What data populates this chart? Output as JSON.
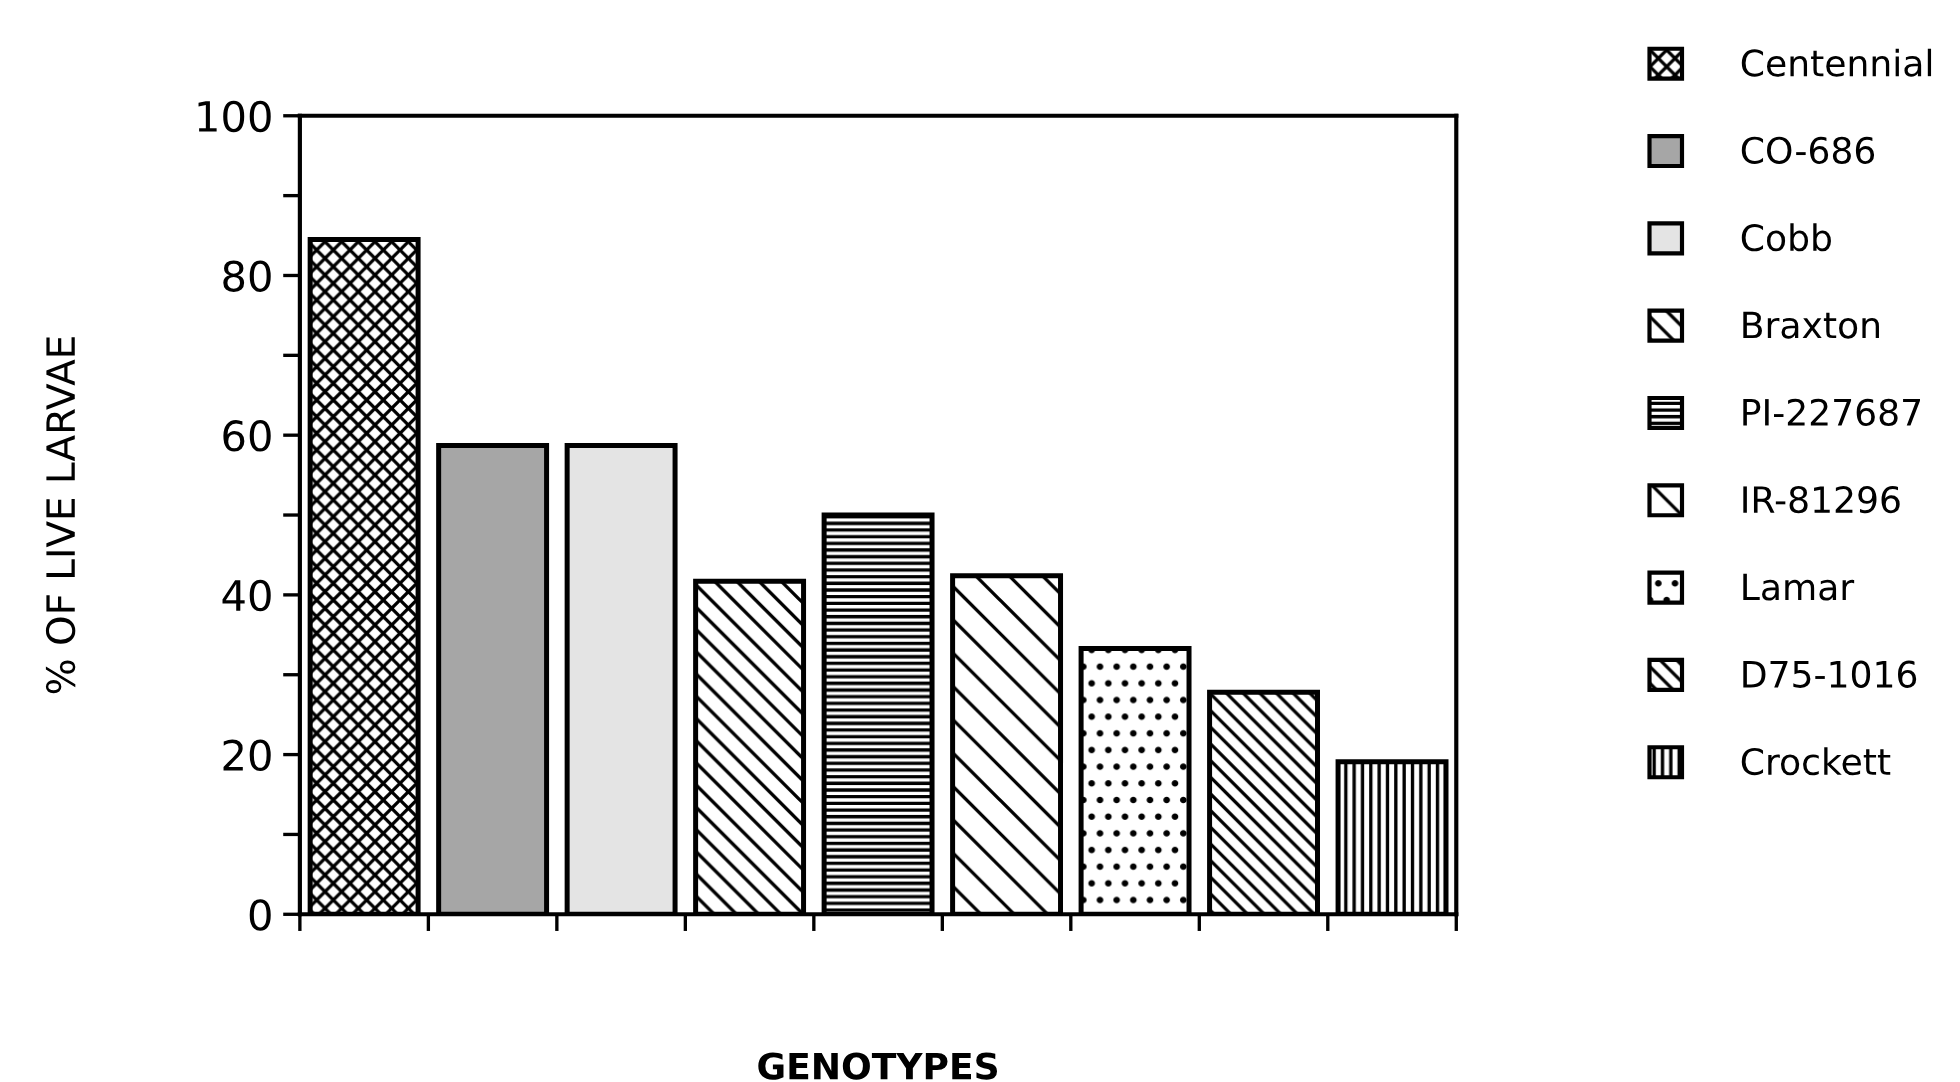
{
  "chart_data": {
    "type": "bar",
    "xlabel": "GENOTYPES",
    "ylabel": "% OF LIVE LARVAE",
    "categories": [
      null,
      null,
      null,
      null,
      null,
      null,
      null,
      null,
      null
    ],
    "series": [
      {
        "name": "Centennial",
        "color": "#000000",
        "values": [
          84.5,
          null,
          null,
          null,
          null,
          null,
          null,
          null,
          null
        ]
      },
      {
        "name": "CO-686",
        "color": "#a6a6a6",
        "values": [
          null,
          58.7,
          null,
          null,
          null,
          null,
          null,
          null,
          null
        ]
      },
      {
        "name": "Cobb",
        "color": "#e4e4e4",
        "values": [
          null,
          null,
          58.7,
          null,
          null,
          null,
          null,
          null,
          null
        ]
      },
      {
        "name": "Braxton",
        "color": "#000000",
        "values": [
          null,
          null,
          null,
          41.7,
          null,
          null,
          null,
          null,
          null
        ]
      },
      {
        "name": "PI-227687",
        "color": "#000000",
        "values": [
          null,
          null,
          null,
          null,
          50.0,
          null,
          null,
          null,
          null
        ]
      },
      {
        "name": "IR-81296",
        "color": "#000000",
        "values": [
          null,
          null,
          null,
          null,
          null,
          42.4,
          null,
          null,
          null
        ]
      },
      {
        "name": "Lamar",
        "color": "#000000",
        "values": [
          null,
          null,
          null,
          null,
          null,
          null,
          33.3,
          null,
          null
        ]
      },
      {
        "name": "D75-1016",
        "color": "#000000",
        "values": [
          null,
          null,
          null,
          null,
          null,
          null,
          null,
          27.8,
          null
        ]
      },
      {
        "name": "Crockett",
        "color": "#000000",
        "values": [
          null,
          null,
          null,
          null,
          null,
          null,
          null,
          null,
          19.1
        ]
      }
    ],
    "ylim": [
      0,
      100
    ],
    "yticks": [
      0,
      {
        "value": 10,
        "label": null
      },
      20,
      {
        "value": 30,
        "label": null
      },
      40,
      {
        "value": 50,
        "label": null
      },
      60,
      {
        "value": 70,
        "label": null
      },
      80,
      {
        "value": 90,
        "label": null
      },
      100
    ],
    "grid": false,
    "legend": "right"
  }
}
